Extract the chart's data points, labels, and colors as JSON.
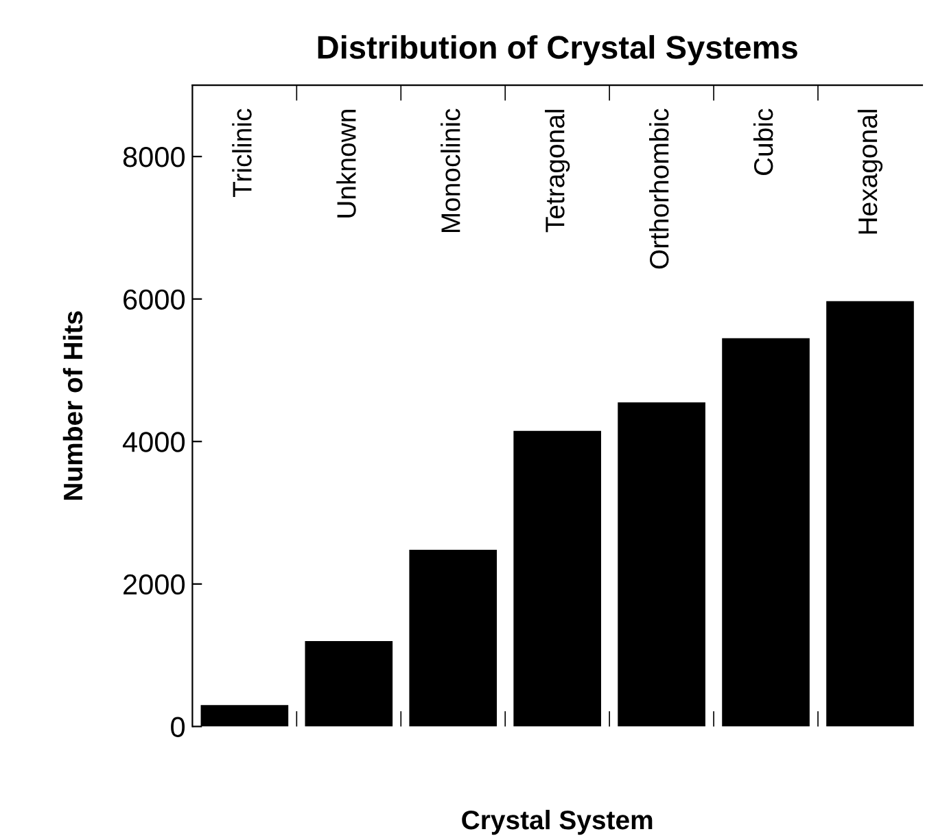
{
  "chart_data": {
    "type": "bar",
    "title": "Distribution of Crystal Systems",
    "xlabel": "Crystal System",
    "ylabel": "Number of Hits",
    "categories": [
      "Triclinic",
      "Unknown",
      "Monoclinic",
      "Tetragonal",
      "Orthorhombic",
      "Cubic",
      "Hexagonal"
    ],
    "values": [
      300,
      1200,
      2480,
      4150,
      4550,
      5450,
      5970
    ],
    "color": "#000000",
    "ylim": [
      0,
      9000
    ],
    "yticks": [
      0,
      2000,
      4000,
      6000,
      8000
    ],
    "grid": false,
    "legend": false
  }
}
